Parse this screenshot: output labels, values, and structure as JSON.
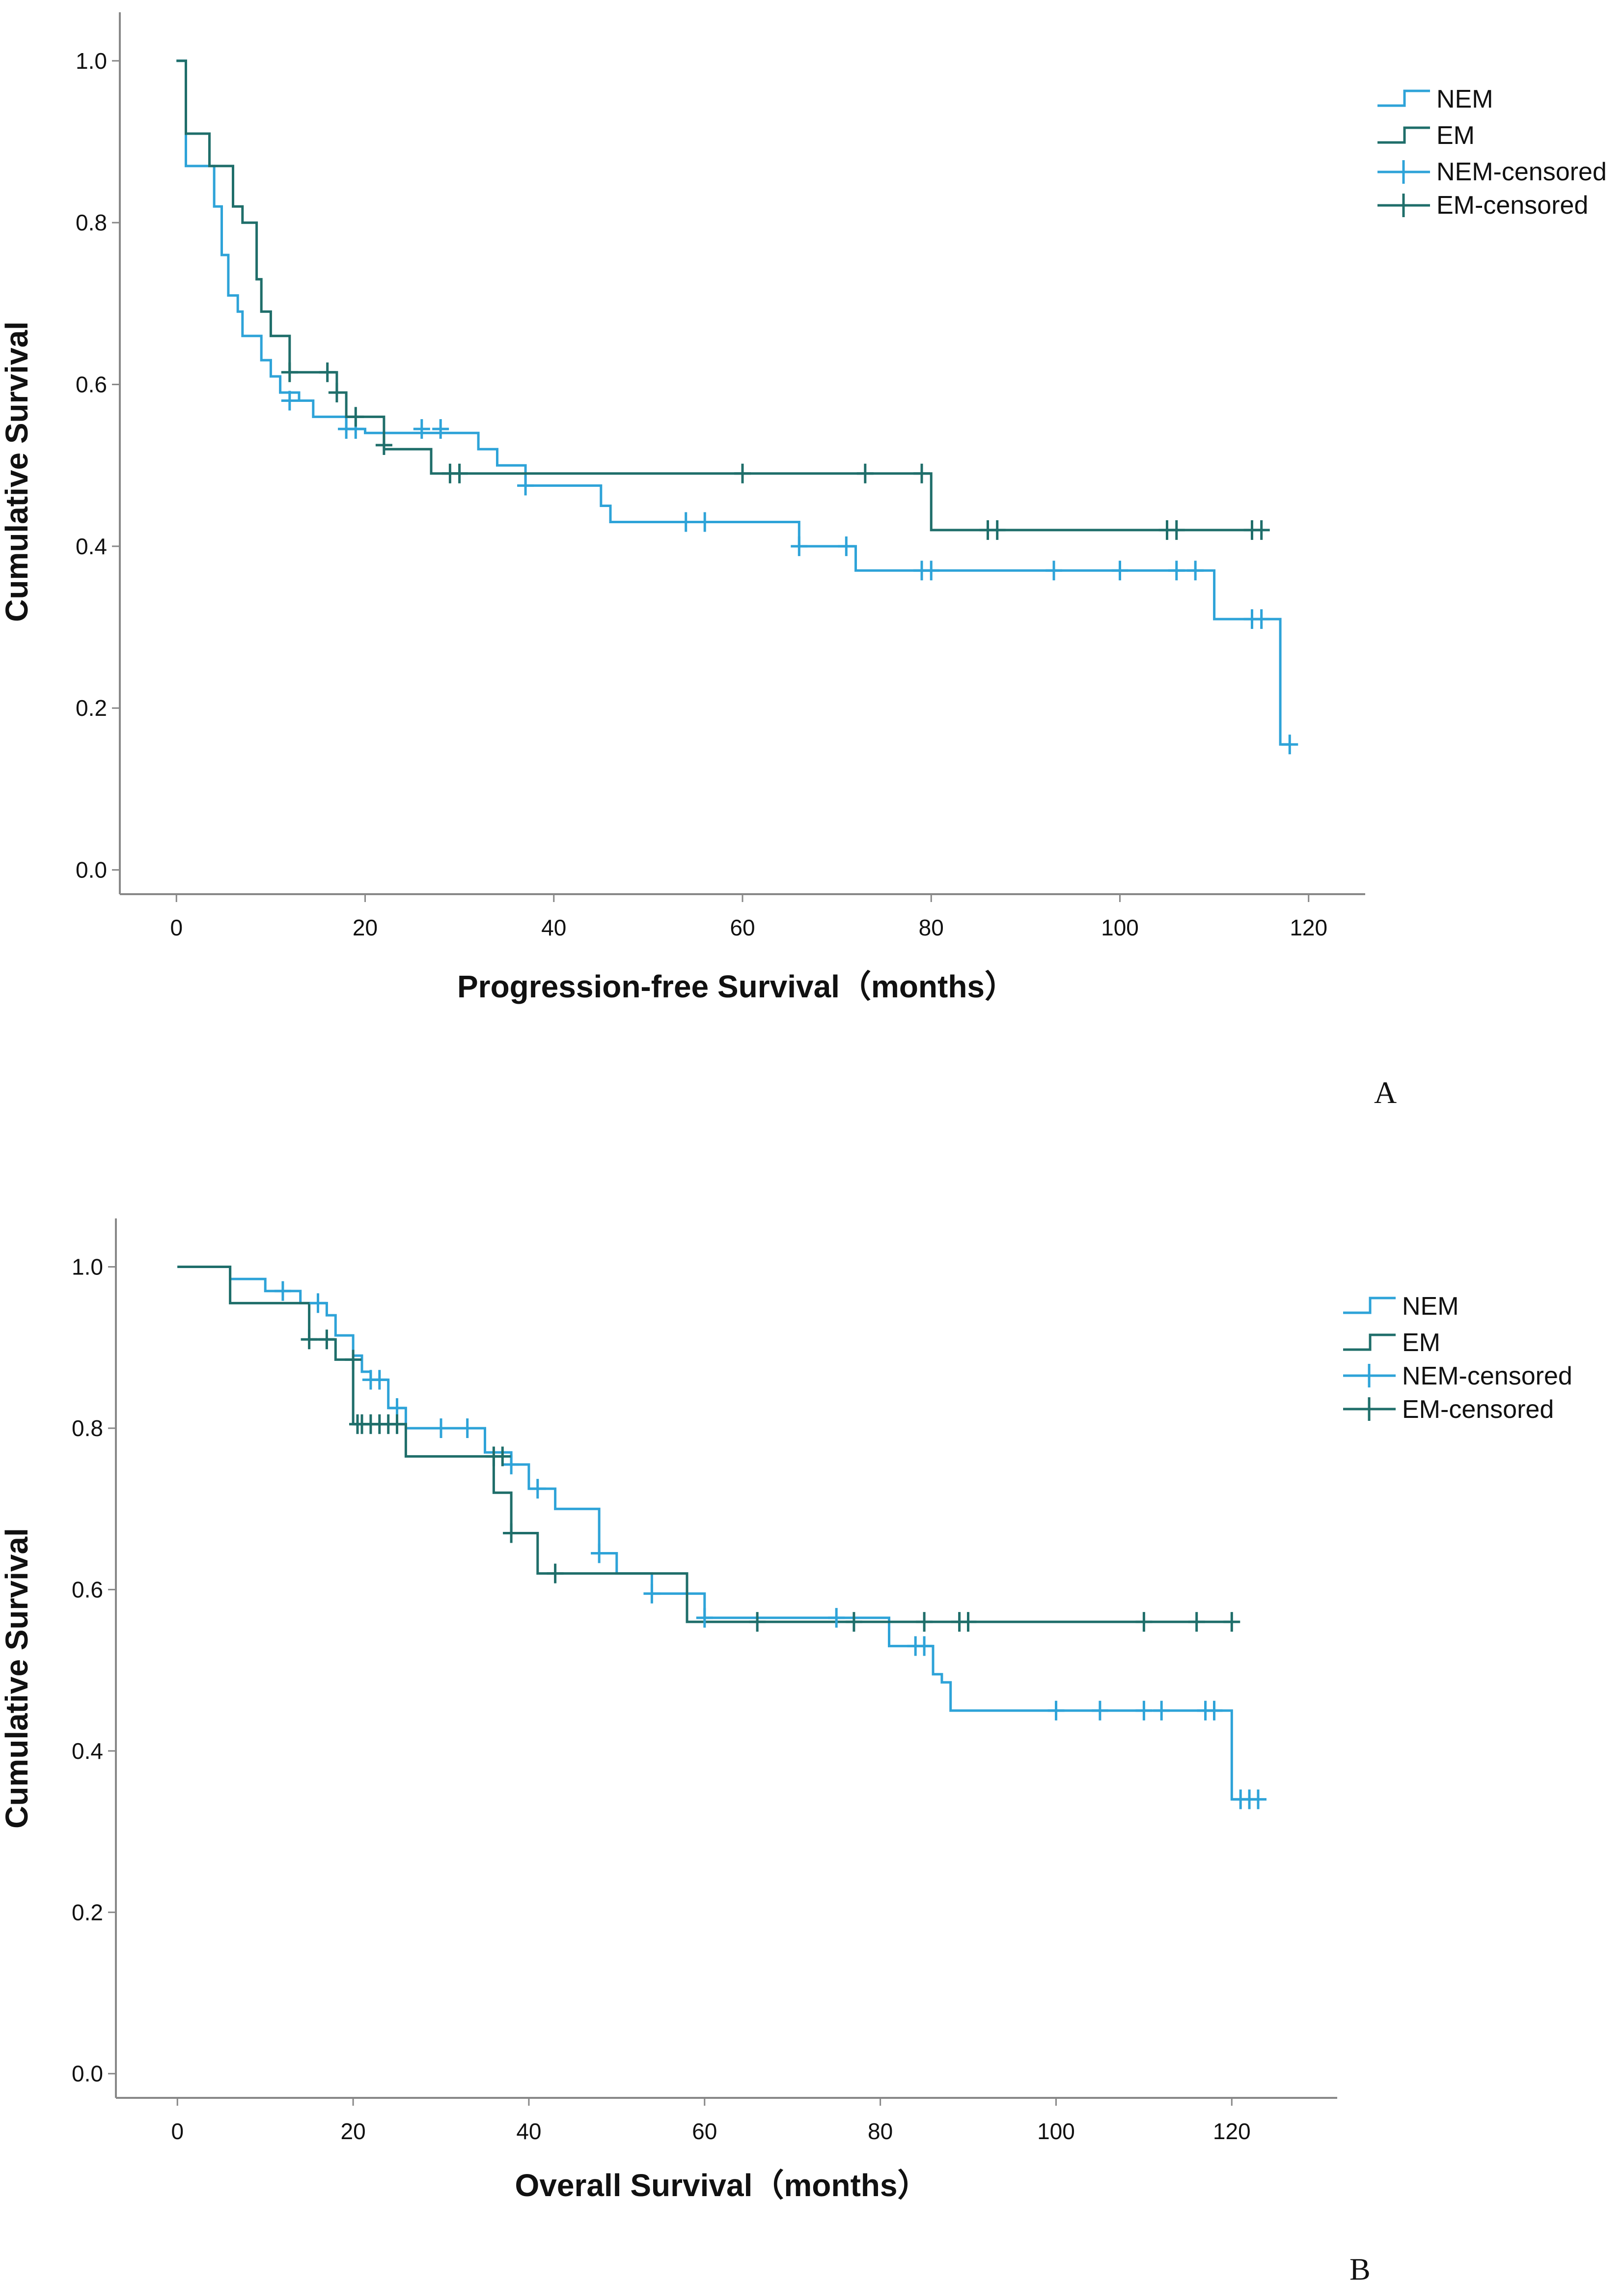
{
  "colors": {
    "NEM": "#2ea3d8",
    "EM": "#1f6e6a",
    "axis": "#888888",
    "text": "#111111"
  },
  "chart_data": [
    {
      "type": "line",
      "panel_label": "A",
      "xlabel": "Progression-free Survival（months）",
      "ylabel": "Cumulative Survival",
      "xlim": [
        -6,
        126
      ],
      "ylim": [
        -0.03,
        1.06
      ],
      "xticks": [
        0,
        20,
        40,
        60,
        80,
        100,
        120
      ],
      "yticks": [
        0.0,
        0.2,
        0.4,
        0.6,
        0.8,
        1.0
      ],
      "xtick_labels": [
        "0",
        "20",
        "40",
        "60",
        "80",
        "100",
        "120"
      ],
      "ytick_labels": [
        "0.0",
        "0.2",
        "0.4",
        "0.6",
        "0.8",
        "1.0"
      ],
      "legend": [
        "NEM",
        "EM",
        "NEM-censored",
        "EM-censored"
      ],
      "series": [
        {
          "name": "NEM",
          "steps": [
            [
              0,
              1.0
            ],
            [
              1,
              0.87
            ],
            [
              4,
              0.82
            ],
            [
              4.8,
              0.76
            ],
            [
              5.5,
              0.71
            ],
            [
              6.5,
              0.69
            ],
            [
              7,
              0.66
            ],
            [
              9,
              0.63
            ],
            [
              10,
              0.61
            ],
            [
              11,
              0.59
            ],
            [
              13,
              0.58
            ],
            [
              14.5,
              0.56
            ],
            [
              18,
              0.545
            ],
            [
              20,
              0.54
            ],
            [
              22,
              0.54
            ],
            [
              32,
              0.52
            ],
            [
              34,
              0.5
            ],
            [
              37,
              0.475
            ],
            [
              45,
              0.45
            ],
            [
              46,
              0.43
            ],
            [
              66,
              0.4
            ],
            [
              72,
              0.37
            ],
            [
              110,
              0.31
            ],
            [
              117,
              0.155
            ],
            [
              118,
              0.155
            ]
          ],
          "censored": [
            [
              12,
              0.58
            ],
            [
              18,
              0.545
            ],
            [
              19,
              0.545
            ],
            [
              26,
              0.545
            ],
            [
              28,
              0.545
            ],
            [
              37,
              0.475
            ],
            [
              54,
              0.43
            ],
            [
              56,
              0.43
            ],
            [
              66,
              0.4
            ],
            [
              71,
              0.4
            ],
            [
              79,
              0.37
            ],
            [
              80,
              0.37
            ],
            [
              93,
              0.37
            ],
            [
              100,
              0.37
            ],
            [
              106,
              0.37
            ],
            [
              108,
              0.37
            ],
            [
              114,
              0.31
            ],
            [
              115,
              0.31
            ],
            [
              118,
              0.155
            ]
          ]
        },
        {
          "name": "EM",
          "steps": [
            [
              0,
              1.0
            ],
            [
              1,
              0.91
            ],
            [
              3.5,
              0.87
            ],
            [
              6,
              0.82
            ],
            [
              7,
              0.8
            ],
            [
              8.5,
              0.73
            ],
            [
              9,
              0.69
            ],
            [
              10,
              0.66
            ],
            [
              12,
              0.615
            ],
            [
              17,
              0.59
            ],
            [
              18,
              0.56
            ],
            [
              22,
              0.52
            ],
            [
              27,
              0.49
            ],
            [
              80,
              0.42
            ],
            [
              115,
              0.42
            ]
          ],
          "censored": [
            [
              12,
              0.615
            ],
            [
              16,
              0.615
            ],
            [
              17,
              0.59
            ],
            [
              19,
              0.56
            ],
            [
              22,
              0.525
            ],
            [
              29,
              0.49
            ],
            [
              30,
              0.49
            ],
            [
              60,
              0.49
            ],
            [
              73,
              0.49
            ],
            [
              79,
              0.49
            ],
            [
              86,
              0.42
            ],
            [
              87,
              0.42
            ],
            [
              105,
              0.42
            ],
            [
              106,
              0.42
            ],
            [
              114,
              0.42
            ],
            [
              115,
              0.42
            ]
          ]
        }
      ]
    },
    {
      "type": "line",
      "panel_label": "B",
      "xlabel": "Overall Survival（months）",
      "ylabel": "Cumulative Survival",
      "xlim": [
        -7,
        132
      ],
      "ylim": [
        -0.03,
        1.06
      ],
      "xticks": [
        0,
        20,
        40,
        60,
        80,
        100,
        120
      ],
      "yticks": [
        0.0,
        0.2,
        0.4,
        0.6,
        0.8,
        1.0
      ],
      "xtick_labels": [
        "0",
        "20",
        "40",
        "60",
        "80",
        "100",
        "120"
      ],
      "ytick_labels": [
        "0.0",
        "0.2",
        "0.4",
        "0.6",
        "0.8",
        "1.0"
      ],
      "legend": [
        "NEM",
        "EM",
        "NEM-censored",
        "EM-censored"
      ],
      "series": [
        {
          "name": "NEM",
          "steps": [
            [
              0,
              1.0
            ],
            [
              6,
              0.985
            ],
            [
              10,
              0.97
            ],
            [
              14,
              0.955
            ],
            [
              17,
              0.94
            ],
            [
              18,
              0.915
            ],
            [
              20,
              0.89
            ],
            [
              21,
              0.87
            ],
            [
              22,
              0.86
            ],
            [
              24,
              0.825
            ],
            [
              26,
              0.8
            ],
            [
              35,
              0.77
            ],
            [
              38,
              0.755
            ],
            [
              40,
              0.725
            ],
            [
              43,
              0.7
            ],
            [
              48,
              0.645
            ],
            [
              50,
              0.62
            ],
            [
              54,
              0.595
            ],
            [
              60,
              0.565
            ],
            [
              81,
              0.53
            ],
            [
              86,
              0.495
            ],
            [
              87,
              0.485
            ],
            [
              88,
              0.45
            ],
            [
              120,
              0.34
            ],
            [
              123,
              0.34
            ]
          ],
          "censored": [
            [
              12,
              0.97
            ],
            [
              16,
              0.955
            ],
            [
              22,
              0.86
            ],
            [
              23,
              0.86
            ],
            [
              25,
              0.825
            ],
            [
              30,
              0.8
            ],
            [
              33,
              0.8
            ],
            [
              38,
              0.755
            ],
            [
              41,
              0.725
            ],
            [
              48,
              0.645
            ],
            [
              54,
              0.595
            ],
            [
              60,
              0.565
            ],
            [
              75,
              0.565
            ],
            [
              84,
              0.53
            ],
            [
              85,
              0.53
            ],
            [
              100,
              0.45
            ],
            [
              105,
              0.45
            ],
            [
              110,
              0.45
            ],
            [
              112,
              0.45
            ],
            [
              117,
              0.45
            ],
            [
              118,
              0.45
            ],
            [
              121,
              0.34
            ],
            [
              122,
              0.34
            ],
            [
              123,
              0.34
            ]
          ]
        },
        {
          "name": "EM",
          "steps": [
            [
              0,
              1.0
            ],
            [
              6,
              0.955
            ],
            [
              15,
              0.91
            ],
            [
              18,
              0.885
            ],
            [
              20,
              0.805
            ],
            [
              26,
              0.765
            ],
            [
              36,
              0.72
            ],
            [
              38,
              0.67
            ],
            [
              41,
              0.62
            ],
            [
              58,
              0.56
            ],
            [
              120,
              0.56
            ]
          ],
          "censored": [
            [
              15,
              0.91
            ],
            [
              17,
              0.91
            ],
            [
              20,
              0.885
            ],
            [
              20.5,
              0.805
            ],
            [
              21,
              0.805
            ],
            [
              22,
              0.805
            ],
            [
              23,
              0.805
            ],
            [
              24,
              0.805
            ],
            [
              25,
              0.805
            ],
            [
              36,
              0.765
            ],
            [
              37,
              0.765
            ],
            [
              38,
              0.67
            ],
            [
              43,
              0.62
            ],
            [
              66,
              0.56
            ],
            [
              77,
              0.56
            ],
            [
              85,
              0.56
            ],
            [
              89,
              0.56
            ],
            [
              90,
              0.56
            ],
            [
              110,
              0.56
            ],
            [
              116,
              0.56
            ],
            [
              120,
              0.56
            ]
          ]
        }
      ]
    }
  ]
}
